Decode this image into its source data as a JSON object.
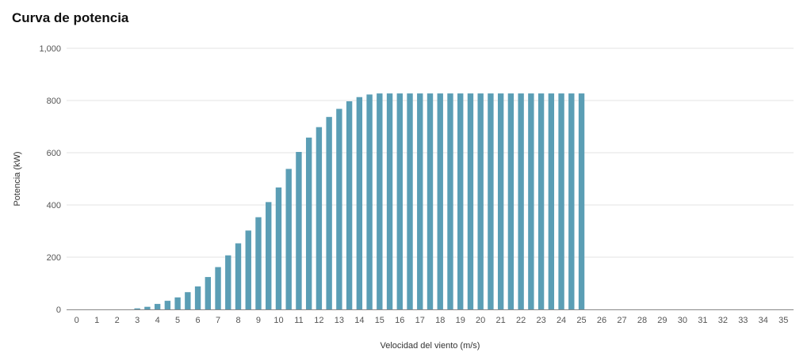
{
  "chart_data": {
    "type": "bar",
    "title": "Curva de potencia",
    "xlabel": "Velocidad del viento (m/s)",
    "ylabel": "Potencia (kW)",
    "ylim": [
      0,
      1000
    ],
    "yticks": [
      "0",
      "200",
      "400",
      "600",
      "800",
      "1,000"
    ],
    "ytick_values": [
      0,
      200,
      400,
      600,
      800,
      1000
    ],
    "xticks": [
      "0",
      "1",
      "2",
      "3",
      "4",
      "5",
      "6",
      "7",
      "8",
      "9",
      "10",
      "11",
      "12",
      "13",
      "14",
      "15",
      "16",
      "17",
      "18",
      "19",
      "20",
      "21",
      "22",
      "23",
      "24",
      "25",
      "26",
      "27",
      "28",
      "29",
      "30",
      "31",
      "32",
      "33",
      "34",
      "35"
    ],
    "xtick_values": [
      0,
      1,
      2,
      3,
      4,
      5,
      6,
      7,
      8,
      9,
      10,
      11,
      12,
      13,
      14,
      15,
      16,
      17,
      18,
      19,
      20,
      21,
      22,
      23,
      24,
      25,
      26,
      27,
      28,
      29,
      30,
      31,
      32,
      33,
      34,
      35
    ],
    "xlim": [
      -0.5,
      35.5
    ],
    "grid": true,
    "bar_color": "#5b9eb5",
    "x": [
      3,
      3.5,
      4,
      4.5,
      5,
      5.5,
      6,
      6.5,
      7,
      7.5,
      8,
      8.5,
      9,
      9.5,
      10,
      10.5,
      11,
      11.5,
      12,
      12.5,
      13,
      13.5,
      14,
      14.5,
      15,
      15.5,
      16,
      16.5,
      17,
      17.5,
      18,
      18.5,
      19,
      19.5,
      20,
      20.5,
      21,
      21.5,
      22,
      22.5,
      23,
      23.5,
      24,
      24.5,
      25
    ],
    "values": [
      4,
      10,
      21,
      33,
      46,
      66,
      88,
      124,
      162,
      207,
      253,
      302,
      353,
      411,
      467,
      538,
      603,
      658,
      698,
      737,
      768,
      797,
      813,
      823,
      827,
      827,
      827,
      827,
      827,
      827,
      827,
      827,
      827,
      827,
      827,
      827,
      827,
      827,
      827,
      827,
      827,
      827,
      827,
      827,
      827
    ]
  }
}
